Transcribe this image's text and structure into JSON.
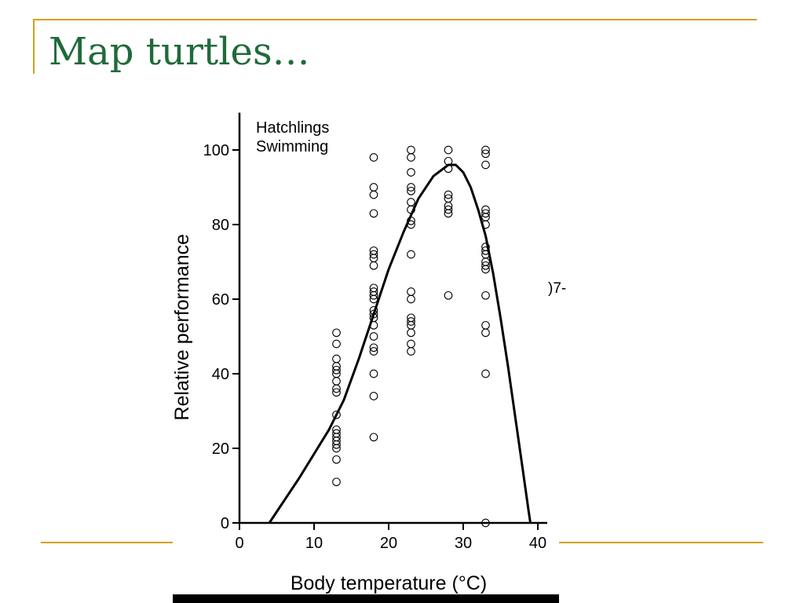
{
  "slide": {
    "title": "Map turtles…",
    "side_fragment": ")7-"
  },
  "colors": {
    "title": "#1f6b3a",
    "accent": "#d4a017"
  },
  "chart_data": {
    "type": "scatter",
    "annotation_lines": [
      "Hatchlings",
      "Swimming"
    ],
    "xlabel": "Body temperature (°C)",
    "ylabel": "Relative performance",
    "xlim": [
      0,
      40
    ],
    "ylim": [
      0,
      110
    ],
    "x_ticks": [
      0,
      10,
      20,
      30,
      40
    ],
    "y_ticks": [
      0,
      20,
      40,
      60,
      80,
      100
    ],
    "grid": false,
    "legend": "none",
    "series": [
      {
        "points": [
          [
            13,
            51
          ],
          [
            13,
            48
          ],
          [
            13,
            44
          ],
          [
            13,
            42
          ],
          [
            13,
            41
          ],
          [
            13,
            40
          ],
          [
            13,
            38
          ],
          [
            13,
            36
          ],
          [
            13,
            35
          ],
          [
            13,
            29
          ],
          [
            13,
            25
          ],
          [
            13,
            24
          ],
          [
            13,
            23
          ],
          [
            13,
            22
          ],
          [
            13,
            21
          ],
          [
            13,
            20
          ],
          [
            13,
            17
          ],
          [
            13,
            11
          ],
          [
            18,
            98
          ],
          [
            18,
            90
          ],
          [
            18,
            88
          ],
          [
            18,
            83
          ],
          [
            18,
            73
          ],
          [
            18,
            72
          ],
          [
            18,
            71
          ],
          [
            18,
            69
          ],
          [
            18,
            63
          ],
          [
            18,
            62
          ],
          [
            18,
            61
          ],
          [
            18,
            60
          ],
          [
            18,
            57
          ],
          [
            18,
            56
          ],
          [
            18,
            55
          ],
          [
            18,
            53
          ],
          [
            18,
            50
          ],
          [
            18,
            47
          ],
          [
            18,
            46
          ],
          [
            18,
            40
          ],
          [
            18,
            34
          ],
          [
            18,
            23
          ],
          [
            23,
            100
          ],
          [
            23,
            98
          ],
          [
            23,
            94
          ],
          [
            23,
            90
          ],
          [
            23,
            89
          ],
          [
            23,
            86
          ],
          [
            23,
            84
          ],
          [
            23,
            81
          ],
          [
            23,
            80
          ],
          [
            23,
            72
          ],
          [
            23,
            62
          ],
          [
            23,
            60
          ],
          [
            23,
            55
          ],
          [
            23,
            54
          ],
          [
            23,
            53
          ],
          [
            23,
            51
          ],
          [
            23,
            48
          ],
          [
            23,
            46
          ],
          [
            28,
            100
          ],
          [
            28,
            97
          ],
          [
            28,
            95
          ],
          [
            28,
            88
          ],
          [
            28,
            87
          ],
          [
            28,
            85
          ],
          [
            28,
            84
          ],
          [
            28,
            83
          ],
          [
            28,
            61
          ],
          [
            33,
            100
          ],
          [
            33,
            99
          ],
          [
            33,
            96
          ],
          [
            33,
            84
          ],
          [
            33,
            83
          ],
          [
            33,
            82
          ],
          [
            33,
            80
          ],
          [
            33,
            74
          ],
          [
            33,
            73
          ],
          [
            33,
            72
          ],
          [
            33,
            70
          ],
          [
            33,
            69
          ],
          [
            33,
            68
          ],
          [
            33,
            61
          ],
          [
            33,
            53
          ],
          [
            33,
            51
          ],
          [
            33,
            40
          ],
          [
            33,
            0
          ]
        ]
      },
      {
        "type": "line",
        "points": [
          [
            4,
            0
          ],
          [
            6,
            6
          ],
          [
            8,
            12
          ],
          [
            10,
            18.5
          ],
          [
            12,
            25
          ],
          [
            14,
            33
          ],
          [
            16,
            44
          ],
          [
            18,
            56
          ],
          [
            20,
            68
          ],
          [
            22,
            78
          ],
          [
            24,
            87
          ],
          [
            26,
            93
          ],
          [
            28,
            96
          ],
          [
            29,
            96
          ],
          [
            30,
            94
          ],
          [
            31,
            90
          ],
          [
            32,
            84
          ],
          [
            33,
            77
          ],
          [
            34,
            67
          ],
          [
            35,
            55
          ],
          [
            36,
            42
          ],
          [
            37,
            28
          ],
          [
            38,
            14
          ],
          [
            38.7,
            4
          ],
          [
            39,
            0
          ]
        ]
      }
    ]
  }
}
